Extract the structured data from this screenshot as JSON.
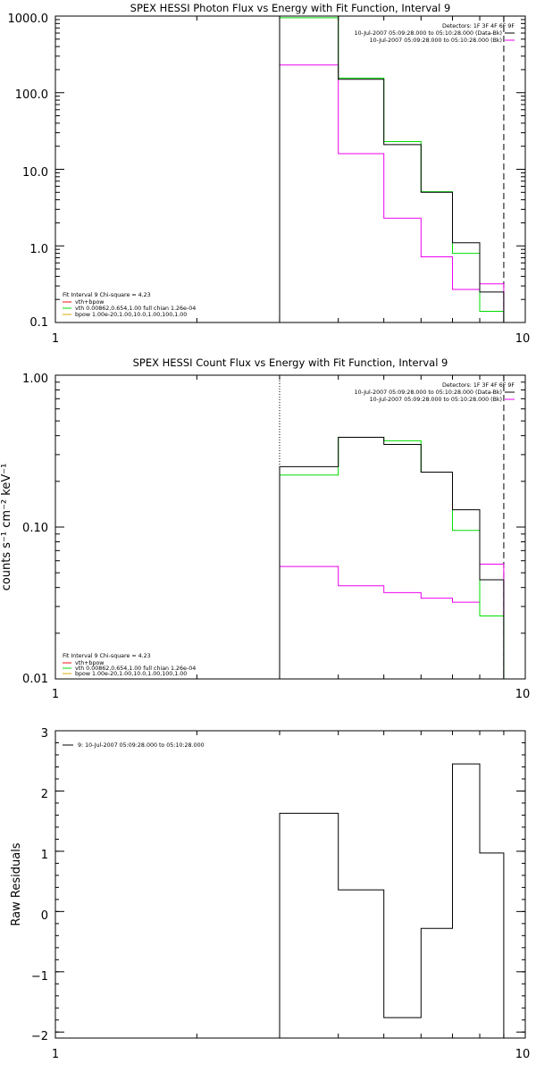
{
  "colors": {
    "axis": "#000000",
    "data": "#000000",
    "total": "#ee1111",
    "vth": "#00dd00",
    "bpow": "#ee00ee",
    "bpow_legend": "#ddaa00",
    "background": "#000000"
  },
  "chart_data": [
    {
      "type": "line",
      "title": "SPEX HESSI Photon Flux vs Energy with Fit Function, Interval 9",
      "xlabel": "",
      "ylabel": "",
      "xscale": "log",
      "yscale": "log",
      "xlim": [
        1,
        10
      ],
      "ylim": [
        0.1,
        1000
      ],
      "x_ticks": [
        "1",
        "10"
      ],
      "y_ticks": [
        "0.1",
        "1.0",
        "10.0",
        "100.0",
        "1000.0"
      ],
      "energy_edges": [
        3.0,
        4.0,
        5.0,
        6.0,
        7.0,
        8.0,
        9.0
      ],
      "series": [
        {
          "key": "data",
          "values": [
            1000,
            150,
            21,
            5.0,
            1.1,
            0.25
          ]
        },
        {
          "key": "vth",
          "values": [
            950,
            155,
            23,
            5.1,
            0.8,
            0.14
          ]
        },
        {
          "key": "bpow",
          "values": [
            230,
            16,
            2.3,
            0.72,
            0.27,
            0.32
          ]
        }
      ],
      "vlines": [
        {
          "x": 3.0,
          "style": "dotted",
          "color": "#00dd00"
        },
        {
          "x": 9.0,
          "style": "dashed",
          "color": "#000000"
        }
      ],
      "legend_top": [
        {
          "text": "Detectors: 1F 3F 4F 6F 9F",
          "color": ""
        },
        {
          "text": "10-Jul-2007 05:09:28.000 to 05:10:28.000 (Data-Bk)",
          "color": "#000000"
        },
        {
          "text": "10-Jul-2007 05:09:28.000 to 05:10:28.000 (Bk)",
          "color": "#ee00ee"
        }
      ],
      "legend_bottom": [
        {
          "text": "Fit Interval 9   Chi-square = 4.23",
          "color": ""
        },
        {
          "text": "vth+bpow",
          "color": "#ee1111"
        },
        {
          "text": "vth 0.00862,0.654,1.00   full chian 1.26e-04",
          "color": "#00dd00"
        },
        {
          "text": "bpow 1.00e-20,1.00,10.0,1.00,100,1.00",
          "color": "#ddaa00"
        }
      ]
    },
    {
      "type": "line",
      "title": "SPEX HESSI Count Flux vs Energy with Fit Function, Interval 9",
      "xlabel": "",
      "ylabel": "counts s⁻¹ cm⁻² keV⁻¹",
      "xscale": "log",
      "yscale": "log",
      "xlim": [
        1,
        10
      ],
      "ylim": [
        0.01,
        1.0
      ],
      "x_ticks": [
        "1",
        "10"
      ],
      "y_ticks": [
        "0.01",
        "0.10",
        "1.00"
      ],
      "energy_edges": [
        3.0,
        4.0,
        5.0,
        6.0,
        7.0,
        8.0,
        9.0
      ],
      "series": [
        {
          "key": "data",
          "values": [
            0.25,
            0.39,
            0.35,
            0.23,
            0.13,
            0.045
          ]
        },
        {
          "key": "vth",
          "values": [
            0.22,
            0.39,
            0.37,
            0.23,
            0.095,
            0.026
          ]
        },
        {
          "key": "bpow",
          "values": [
            0.055,
            0.041,
            0.037,
            0.034,
            0.032,
            0.057
          ]
        }
      ],
      "vlines": [
        {
          "x": 3.0,
          "style": "dotted",
          "color": "#000000"
        },
        {
          "x": 9.0,
          "style": "dashed",
          "color": "#000000"
        }
      ],
      "legend_top": [
        {
          "text": "Detectors: 1F 3F 4F 6F 9F",
          "color": ""
        },
        {
          "text": "10-Jul-2007 05:09:28.000 to 05:10:28.000 (Data-Bk)",
          "color": "#000000"
        },
        {
          "text": "10-Jul-2007 05:09:28.000 to 05:10:28.000 (Bk)",
          "color": "#ee00ee"
        }
      ],
      "legend_bottom": [
        {
          "text": "Fit Interval 9   Chi-square = 4.23",
          "color": ""
        },
        {
          "text": "vth+bpow",
          "color": "#ee1111"
        },
        {
          "text": "vth 0.00862,0.654,1.00   full chian 1.26e-04",
          "color": "#00dd00"
        },
        {
          "text": "bpow 1.00e-20,1.00,10.0,1.00,100,1.00",
          "color": "#ddaa00"
        }
      ]
    },
    {
      "type": "line",
      "title": "",
      "xlabel": "",
      "ylabel": "Raw Residuals",
      "xscale": "log",
      "yscale": "linear",
      "xlim": [
        1,
        10
      ],
      "ylim": [
        -2.1,
        3
      ],
      "x_ticks": [
        "1",
        "10"
      ],
      "y_ticks": [
        "−2",
        "−1",
        "0",
        "1",
        "2",
        "3"
      ],
      "y_tick_values": [
        -2,
        -1,
        0,
        1,
        2,
        3
      ],
      "energy_edges": [
        3.0,
        4.0,
        5.0,
        6.0,
        7.0,
        8.0,
        9.0
      ],
      "series": [
        {
          "key": "data",
          "values": [
            1.63,
            0.36,
            -1.76,
            -0.28,
            2.45,
            0.97
          ]
        }
      ],
      "vlines": [],
      "legend_top": [
        {
          "text": "9: 10-Jul-2007 05:09:28.000 to 05:10:28.000",
          "color": "#000000"
        }
      ],
      "legend_bottom": []
    }
  ]
}
